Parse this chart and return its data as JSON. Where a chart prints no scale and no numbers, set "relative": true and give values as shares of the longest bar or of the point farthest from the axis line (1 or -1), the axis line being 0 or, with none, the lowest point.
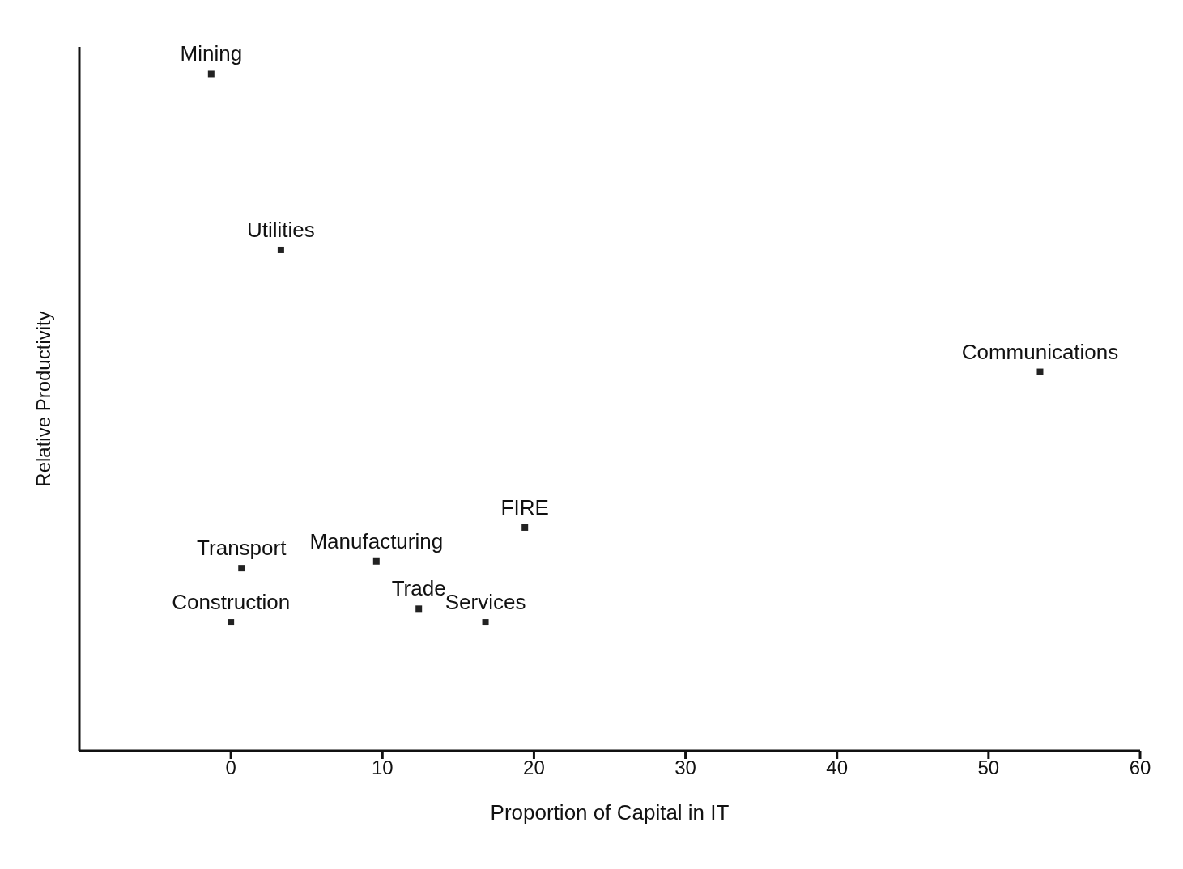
{
  "chart_data": {
    "type": "scatter",
    "relative": true,
    "xlabel": "Proportion of Capital in IT",
    "ylabel": "Relative Productivity",
    "xlim": [
      -10,
      60
    ],
    "xticks": [
      0,
      10,
      20,
      30,
      40,
      50,
      60
    ],
    "tick_labels": "x",
    "grid": false,
    "legend": false,
    "marker": "square",
    "series": [
      {
        "color": "#222222",
        "x": [
          -1.3,
          3.3,
          53.4,
          19.4,
          9.6,
          0.7,
          0,
          12.4,
          16.8
        ],
        "values": [
          1,
          0.74,
          0.56,
          0.33,
          0.28,
          0.27,
          0.19,
          0.21,
          0.19
        ]
      }
    ],
    "annotations": [
      {
        "text": "Mining",
        "x": -1.3,
        "y": 1
      },
      {
        "text": "Utilities",
        "x": 3.3,
        "y": 0.74
      },
      {
        "text": "Communications",
        "x": 53.4,
        "y": 0.56
      },
      {
        "text": "FIRE",
        "x": 19.4,
        "y": 0.33
      },
      {
        "text": "Manufacturing",
        "x": 9.6,
        "y": 0.28
      },
      {
        "text": "Transport",
        "x": 0.7,
        "y": 0.27
      },
      {
        "text": "Construction",
        "x": 0,
        "y": 0.19
      },
      {
        "text": "Trade",
        "x": 12.4,
        "y": 0.21
      },
      {
        "text": "Services",
        "x": 16.8,
        "y": 0.19
      }
    ]
  }
}
